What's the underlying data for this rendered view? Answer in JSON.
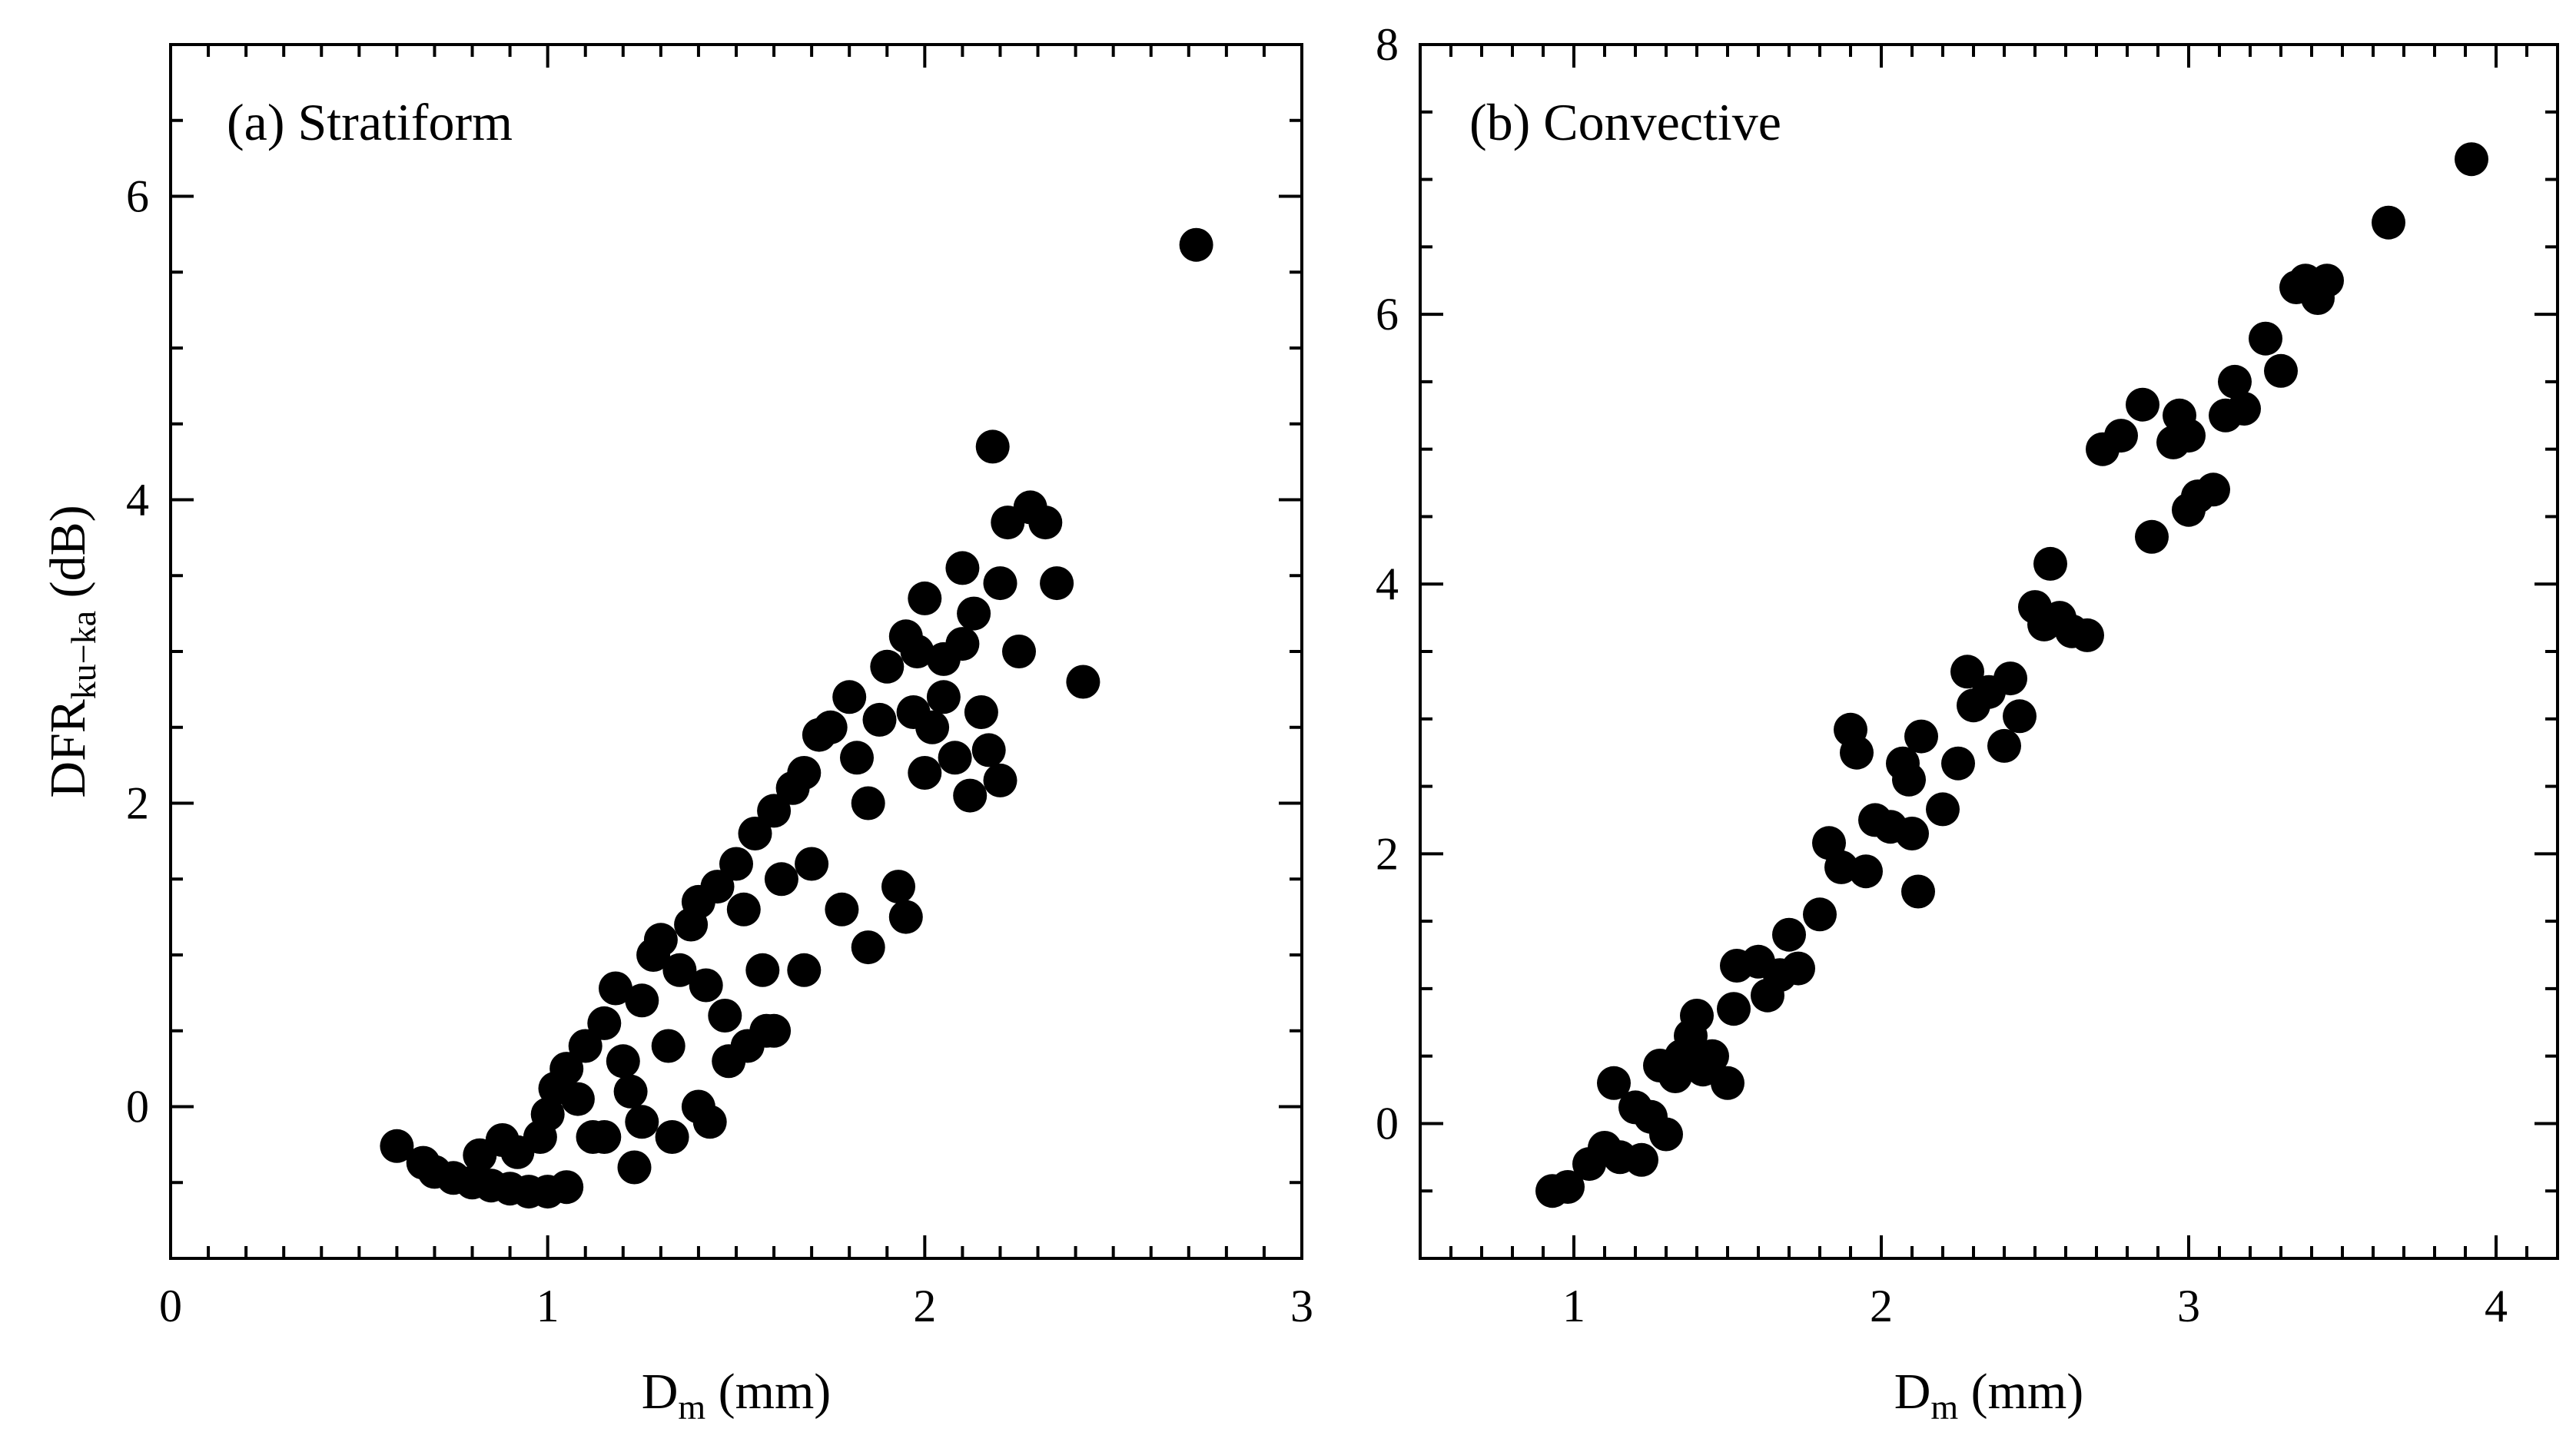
{
  "chart_data": [
    {
      "type": "scatter",
      "title": "(a) Stratiform",
      "xlabel": "D",
      "xlabel_subscript": "m",
      "xlabel_suffix": " (mm)",
      "ylabel": "DFR",
      "ylabel_subscript": "ku−ka",
      "ylabel_suffix": " (dB)",
      "xlim": [
        0,
        3
      ],
      "ylim": [
        -1,
        7
      ],
      "xticks": [
        0,
        1,
        2,
        3
      ],
      "yticks": [
        0,
        2,
        4,
        6
      ],
      "xtick_labels": [
        "0",
        "1",
        "2",
        "3"
      ],
      "ytick_labels": [
        "0",
        "2",
        "4",
        "6"
      ],
      "color": "#000000",
      "notes": "Dense cloud of points between Dm 0.6-2.4 mm; representative points listed.",
      "points": [
        [
          0.6,
          -0.26
        ],
        [
          0.67,
          -0.37
        ],
        [
          0.7,
          -0.43
        ],
        [
          0.75,
          -0.47
        ],
        [
          0.8,
          -0.5
        ],
        [
          0.85,
          -0.52
        ],
        [
          0.9,
          -0.54
        ],
        [
          0.95,
          -0.56
        ],
        [
          1.0,
          -0.56
        ],
        [
          1.05,
          -0.53
        ],
        [
          0.82,
          -0.32
        ],
        [
          0.88,
          -0.22
        ],
        [
          0.92,
          -0.3
        ],
        [
          0.98,
          -0.2
        ],
        [
          1.0,
          -0.05
        ],
        [
          1.02,
          0.12
        ],
        [
          1.05,
          0.25
        ],
        [
          1.1,
          0.4
        ],
        [
          1.08,
          0.05
        ],
        [
          1.12,
          -0.2
        ],
        [
          1.15,
          0.55
        ],
        [
          1.18,
          0.78
        ],
        [
          1.2,
          0.3
        ],
        [
          1.22,
          0.1
        ],
        [
          1.25,
          -0.1
        ],
        [
          1.25,
          0.7
        ],
        [
          1.28,
          1.0
        ],
        [
          1.3,
          1.1
        ],
        [
          1.32,
          0.4
        ],
        [
          1.35,
          0.9
        ],
        [
          1.38,
          1.2
        ],
        [
          1.4,
          1.35
        ],
        [
          1.42,
          0.8
        ],
        [
          1.45,
          1.45
        ],
        [
          1.47,
          0.6
        ],
        [
          1.5,
          1.6
        ],
        [
          1.52,
          1.3
        ],
        [
          1.55,
          1.8
        ],
        [
          1.57,
          0.9
        ],
        [
          1.6,
          1.95
        ],
        [
          1.6,
          0.5
        ],
        [
          1.62,
          1.5
        ],
        [
          1.65,
          2.1
        ],
        [
          1.68,
          2.2
        ],
        [
          1.7,
          1.6
        ],
        [
          1.72,
          2.45
        ],
        [
          1.75,
          2.5
        ],
        [
          1.78,
          1.3
        ],
        [
          1.8,
          2.7
        ],
        [
          1.82,
          2.3
        ],
        [
          1.15,
          -0.2
        ],
        [
          1.23,
          -0.4
        ],
        [
          1.33,
          -0.2
        ],
        [
          1.4,
          0.0
        ],
        [
          1.43,
          -0.1
        ],
        [
          1.48,
          0.3
        ],
        [
          1.53,
          0.4
        ],
        [
          1.58,
          0.5
        ],
        [
          1.68,
          0.9
        ],
        [
          1.85,
          1.05
        ],
        [
          1.85,
          2.0
        ],
        [
          1.88,
          2.55
        ],
        [
          1.9,
          2.9
        ],
        [
          1.93,
          1.45
        ],
        [
          1.95,
          3.1
        ],
        [
          1.95,
          1.25
        ],
        [
          1.97,
          2.6
        ],
        [
          2.0,
          3.35
        ],
        [
          2.0,
          2.2
        ],
        [
          2.02,
          2.5
        ],
        [
          2.05,
          2.7
        ],
        [
          2.08,
          2.3
        ],
        [
          2.1,
          3.55
        ],
        [
          2.12,
          2.05
        ],
        [
          2.13,
          3.25
        ],
        [
          2.15,
          2.6
        ],
        [
          2.17,
          2.35
        ],
        [
          2.18,
          4.35
        ],
        [
          2.2,
          3.45
        ],
        [
          2.2,
          2.15
        ],
        [
          2.22,
          3.85
        ],
        [
          2.25,
          3.0
        ],
        [
          2.28,
          3.95
        ],
        [
          2.32,
          3.85
        ],
        [
          2.35,
          3.45
        ],
        [
          2.42,
          2.8
        ],
        [
          2.72,
          5.68
        ],
        [
          2.1,
          3.05
        ],
        [
          1.98,
          3.0
        ],
        [
          2.05,
          2.95
        ]
      ]
    },
    {
      "type": "scatter",
      "title": "(b) Convective",
      "xlabel": "D",
      "xlabel_subscript": "m",
      "xlabel_suffix": " (mm)",
      "xlim": [
        0.5,
        4.2
      ],
      "ylim": [
        -1,
        8
      ],
      "xticks": [
        1,
        2,
        3,
        4
      ],
      "yticks": [
        0,
        2,
        4,
        6,
        8
      ],
      "xtick_labels": [
        "1",
        "2",
        "3",
        "4"
      ],
      "ytick_labels": [
        "0",
        "2",
        "4",
        "6",
        "8"
      ],
      "color": "#000000",
      "points": [
        [
          0.93,
          -0.5
        ],
        [
          0.98,
          -0.47
        ],
        [
          1.05,
          -0.3
        ],
        [
          1.1,
          -0.18
        ],
        [
          1.13,
          0.3
        ],
        [
          1.15,
          -0.25
        ],
        [
          1.2,
          0.12
        ],
        [
          1.22,
          -0.27
        ],
        [
          1.25,
          0.05
        ],
        [
          1.28,
          0.43
        ],
        [
          1.3,
          -0.08
        ],
        [
          1.33,
          0.35
        ],
        [
          1.35,
          0.5
        ],
        [
          1.38,
          0.65
        ],
        [
          1.4,
          0.8
        ],
        [
          1.42,
          0.4
        ],
        [
          1.45,
          0.5
        ],
        [
          1.5,
          0.3
        ],
        [
          1.52,
          0.85
        ],
        [
          1.53,
          1.17
        ],
        [
          1.6,
          1.2
        ],
        [
          1.63,
          0.95
        ],
        [
          1.67,
          1.1
        ],
        [
          1.7,
          1.4
        ],
        [
          1.73,
          1.15
        ],
        [
          1.8,
          1.55
        ],
        [
          1.83,
          2.08
        ],
        [
          1.87,
          1.9
        ],
        [
          1.9,
          2.92
        ],
        [
          1.92,
          2.75
        ],
        [
          1.95,
          1.87
        ],
        [
          1.98,
          2.25
        ],
        [
          2.03,
          2.2
        ],
        [
          2.07,
          2.67
        ],
        [
          2.09,
          2.55
        ],
        [
          2.1,
          2.15
        ],
        [
          2.12,
          1.72
        ],
        [
          2.13,
          2.87
        ],
        [
          2.2,
          2.33
        ],
        [
          2.25,
          2.67
        ],
        [
          2.28,
          3.35
        ],
        [
          2.3,
          3.1
        ],
        [
          2.35,
          3.2
        ],
        [
          2.4,
          2.8
        ],
        [
          2.42,
          3.3
        ],
        [
          2.45,
          3.02
        ],
        [
          2.5,
          3.83
        ],
        [
          2.53,
          3.7
        ],
        [
          2.55,
          4.15
        ],
        [
          2.58,
          3.75
        ],
        [
          2.62,
          3.65
        ],
        [
          2.67,
          3.62
        ],
        [
          2.72,
          5.0
        ],
        [
          2.78,
          5.1
        ],
        [
          2.85,
          5.33
        ],
        [
          2.88,
          4.35
        ],
        [
          2.95,
          5.05
        ],
        [
          2.97,
          5.25
        ],
        [
          3.0,
          5.1
        ],
        [
          3.0,
          4.55
        ],
        [
          3.03,
          4.65
        ],
        [
          3.08,
          4.7
        ],
        [
          3.12,
          5.25
        ],
        [
          3.15,
          5.5
        ],
        [
          3.18,
          5.3
        ],
        [
          3.25,
          5.82
        ],
        [
          3.3,
          5.58
        ],
        [
          3.35,
          6.2
        ],
        [
          3.38,
          6.25
        ],
        [
          3.42,
          6.12
        ],
        [
          3.45,
          6.25
        ],
        [
          3.65,
          6.68
        ],
        [
          3.92,
          7.15
        ]
      ]
    }
  ]
}
